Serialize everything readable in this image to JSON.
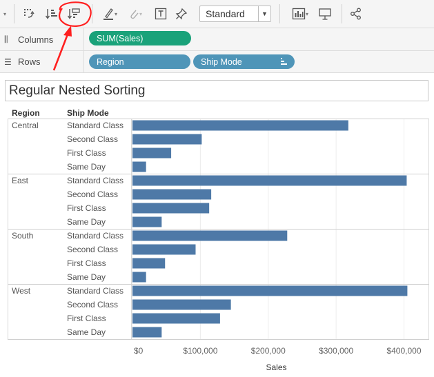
{
  "toolbar": {
    "buttons": [
      {
        "name": "swap-icon"
      },
      {
        "name": "sort-ascending-icon"
      },
      {
        "name": "sort-descending-icon"
      },
      {
        "name": "highlight-icon"
      },
      {
        "name": "group-members-icon"
      },
      {
        "name": "show-labels-icon"
      },
      {
        "name": "fix-axes-icon"
      },
      {
        "name": "show-me-icon"
      },
      {
        "name": "presentation-icon"
      },
      {
        "name": "share-icon"
      }
    ],
    "view_size": "Standard"
  },
  "shelves": {
    "columns_label": "Columns",
    "rows_label": "Rows",
    "columns_pills": [
      "SUM(Sales)"
    ],
    "rows_pills": [
      "Region",
      "Ship Mode"
    ]
  },
  "view": {
    "title": "Regular Nested Sorting",
    "region_header": "Region",
    "shipmode_header": "Ship Mode",
    "axis_title": "Sales"
  },
  "colors": {
    "bar": "#4e79a7",
    "measure_pill": "#1aa27a",
    "dimension_pill": "#4f95b8",
    "annotation": "#ff2020"
  },
  "chart_data": {
    "type": "bar",
    "orientation": "horizontal",
    "xlabel": "Sales",
    "xlim": [
      0,
      430000
    ],
    "ticks": [
      {
        "value": 0,
        "label": "$0"
      },
      {
        "value": 100000,
        "label": "$100,000"
      },
      {
        "value": 200000,
        "label": "$200,000"
      },
      {
        "value": 300000,
        "label": "$300,000"
      },
      {
        "value": 400000,
        "label": "$400,000"
      }
    ],
    "groups": [
      {
        "region": "Central",
        "rows": [
          {
            "ship_mode": "Standard Class",
            "value": 318000
          },
          {
            "ship_mode": "Second Class",
            "value": 102000
          },
          {
            "ship_mode": "First Class",
            "value": 57000
          },
          {
            "ship_mode": "Same Day",
            "value": 20000
          }
        ]
      },
      {
        "region": "East",
        "rows": [
          {
            "ship_mode": "Standard Class",
            "value": 404000
          },
          {
            "ship_mode": "Second Class",
            "value": 116000
          },
          {
            "ship_mode": "First Class",
            "value": 113000
          },
          {
            "ship_mode": "Same Day",
            "value": 43000
          }
        ]
      },
      {
        "region": "South",
        "rows": [
          {
            "ship_mode": "Standard Class",
            "value": 228000
          },
          {
            "ship_mode": "Second Class",
            "value": 93000
          },
          {
            "ship_mode": "First Class",
            "value": 48000
          },
          {
            "ship_mode": "Same Day",
            "value": 20000
          }
        ]
      },
      {
        "region": "West",
        "rows": [
          {
            "ship_mode": "Standard Class",
            "value": 405000
          },
          {
            "ship_mode": "Second Class",
            "value": 145000
          },
          {
            "ship_mode": "First Class",
            "value": 129000
          },
          {
            "ship_mode": "Same Day",
            "value": 43000
          }
        ]
      }
    ]
  }
}
